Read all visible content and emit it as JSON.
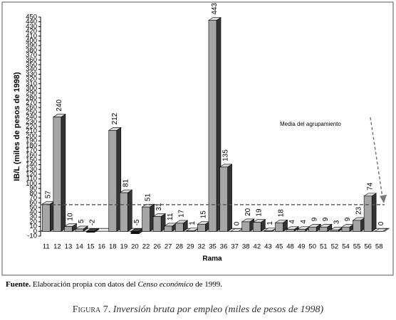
{
  "chart_data": {
    "type": "bar3d",
    "y_label": "IB/L (miles de pesos de 1998)",
    "x_label": "Rama",
    "annotation": "Media del agrupamiento",
    "mean_line": 56,
    "categories": [
      "11",
      "12",
      "13",
      "14",
      "15",
      "16",
      "18",
      "19",
      "20",
      "22",
      "26",
      "27",
      "28",
      "29",
      "32",
      "35",
      "36",
      "37",
      "38",
      "42",
      "43",
      "45",
      "48",
      "49",
      "50",
      "51",
      "52",
      "54",
      "55",
      "56",
      "58"
    ],
    "values": [
      57,
      240,
      10,
      5,
      -2,
      null,
      212,
      81,
      -5,
      51,
      31,
      11,
      17,
      1,
      15,
      443,
      135,
      0,
      20,
      19,
      1,
      18,
      4,
      4,
      9,
      9,
      3,
      9,
      23,
      74,
      0
    ],
    "color": "#a6a6a6",
    "negative_color": "#111111",
    "ylim": [
      -10,
      450
    ],
    "yticks": [
      -10,
      0,
      10,
      20,
      30,
      40,
      50,
      60,
      70,
      80,
      90,
      100,
      110,
      120,
      130,
      140,
      150,
      160,
      170,
      180,
      190,
      200,
      210,
      220,
      230,
      240,
      250,
      260,
      270,
      280,
      290,
      300,
      310,
      320,
      330,
      340,
      350,
      360,
      370,
      380,
      390,
      400,
      410,
      420,
      430,
      440,
      450
    ],
    "source": {
      "label": "Fuente.",
      "before": "Elaboración propia con datos del ",
      "italic": "Censo económico",
      "after": " de 1999."
    },
    "caption": {
      "label": "Figura 7.",
      "text": "Inversión bruta por empleo (miles de pesos de 1998)"
    }
  }
}
